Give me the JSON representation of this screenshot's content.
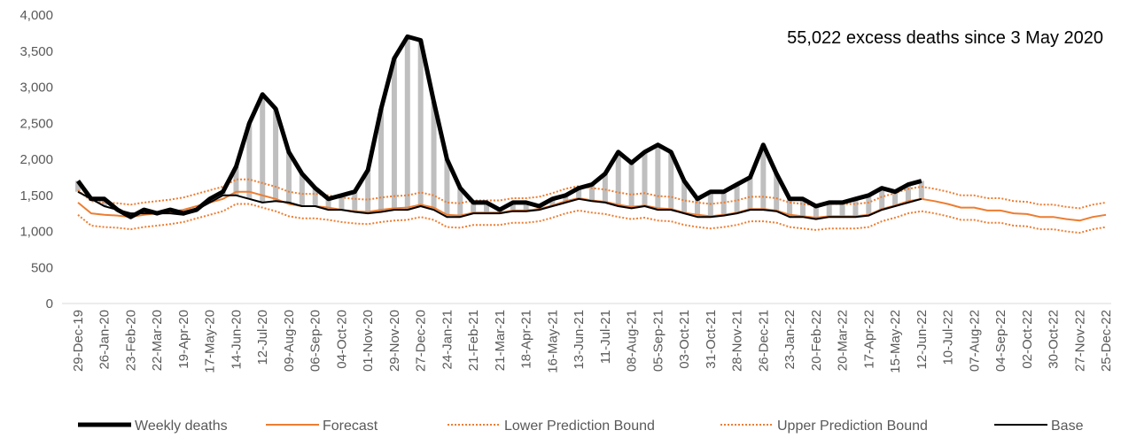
{
  "chart_data": {
    "type": "line",
    "annotation": "55,022 excess deaths since 3 May 2020",
    "categories": [
      "29-Dec-19",
      null,
      "26-Jan-20",
      null,
      "23-Feb-20",
      null,
      "22-Mar-20",
      null,
      "19-Apr-20",
      null,
      "17-May-20",
      null,
      "14-Jun-20",
      null,
      "12-Jul-20",
      null,
      "09-Aug-20",
      null,
      "06-Sep-20",
      null,
      "04-Oct-20",
      null,
      "01-Nov-20",
      null,
      "29-Nov-20",
      null,
      "27-Dec-20",
      null,
      "24-Jan-21",
      null,
      "21-Feb-21",
      null,
      "21-Mar-21",
      null,
      "18-Apr-21",
      null,
      "16-May-21",
      null,
      "13-Jun-21",
      null,
      "11-Jul-21",
      null,
      "08-Aug-21",
      null,
      "05-Sep-21",
      null,
      "03-Oct-21",
      null,
      "31-Oct-21",
      null,
      "28-Nov-21",
      null,
      "26-Dec-21",
      null,
      "23-Jan-22",
      null,
      "20-Feb-22",
      null,
      "20-Mar-22",
      null,
      "17-Apr-22",
      null,
      "15-May-22",
      null,
      "12-Jun-22",
      null,
      "10-Jul-22",
      null,
      "07-Aug-22",
      null,
      "04-Sep-22",
      null,
      "02-Oct-22",
      null,
      "30-Oct-22",
      null,
      "27-Nov-22",
      null,
      "25-Dec-22"
    ],
    "series": [
      {
        "name": "Weekly deaths",
        "color": "#000000",
        "style": "thick",
        "values": [
          1700,
          1450,
          1450,
          1300,
          1200,
          1300,
          1250,
          1300,
          1250,
          1300,
          1450,
          1550,
          1900,
          2500,
          2900,
          2700,
          2100,
          1800,
          1600,
          1450,
          1500,
          1550,
          1850,
          2700,
          3400,
          3700,
          3650,
          2800,
          2000,
          1600,
          1400,
          1400,
          1300,
          1400,
          1400,
          1350,
          1450,
          1500,
          1600,
          1650,
          1800,
          2100,
          1950,
          2100,
          2200,
          2100,
          1700,
          1450,
          1550,
          1550,
          1650,
          1750,
          2200,
          1800,
          1450,
          1450,
          1350,
          1400,
          1400,
          1450,
          1500,
          1600,
          1550,
          1650,
          1700,
          null,
          null,
          null,
          null,
          null,
          null,
          null,
          null,
          null,
          null,
          null,
          null,
          null,
          null
        ]
      },
      {
        "name": "Forecast",
        "color": "#ed7d31",
        "style": "solid",
        "values": [
          1400,
          1250,
          1230,
          1220,
          1200,
          1230,
          1250,
          1270,
          1300,
          1350,
          1400,
          1450,
          1550,
          1550,
          1500,
          1450,
          1380,
          1350,
          1350,
          1330,
          1300,
          1280,
          1270,
          1300,
          1320,
          1330,
          1370,
          1330,
          1230,
          1220,
          1260,
          1260,
          1260,
          1290,
          1290,
          1310,
          1360,
          1420,
          1460,
          1430,
          1410,
          1370,
          1340,
          1360,
          1320,
          1310,
          1260,
          1230,
          1210,
          1230,
          1260,
          1310,
          1310,
          1290,
          1230,
          1210,
          1190,
          1210,
          1210,
          1210,
          1230,
          1310,
          1360,
          1420,
          1450,
          1420,
          1380,
          1330,
          1330,
          1290,
          1290,
          1250,
          1240,
          1200,
          1200,
          1170,
          1150,
          1200,
          1230
        ]
      },
      {
        "name": "Lower Prediction Bound",
        "color": "#ed7d31",
        "style": "dotted",
        "values": [
          1230,
          1080,
          1060,
          1050,
          1030,
          1060,
          1080,
          1100,
          1130,
          1180,
          1230,
          1280,
          1380,
          1380,
          1330,
          1280,
          1210,
          1180,
          1180,
          1160,
          1130,
          1110,
          1100,
          1130,
          1150,
          1160,
          1200,
          1160,
          1060,
          1050,
          1090,
          1090,
          1090,
          1120,
          1120,
          1140,
          1190,
          1250,
          1290,
          1260,
          1240,
          1200,
          1170,
          1190,
          1150,
          1140,
          1090,
          1060,
          1040,
          1060,
          1090,
          1140,
          1140,
          1120,
          1060,
          1040,
          1020,
          1040,
          1040,
          1040,
          1060,
          1140,
          1190,
          1250,
          1280,
          1250,
          1210,
          1160,
          1160,
          1120,
          1120,
          1080,
          1070,
          1030,
          1030,
          1000,
          980,
          1030,
          1060
        ]
      },
      {
        "name": "Upper Prediction Bound",
        "color": "#ed7d31",
        "style": "dotted",
        "values": [
          1570,
          1420,
          1400,
          1390,
          1370,
          1400,
          1420,
          1440,
          1470,
          1520,
          1570,
          1620,
          1720,
          1720,
          1670,
          1620,
          1550,
          1520,
          1520,
          1500,
          1470,
          1450,
          1440,
          1470,
          1490,
          1500,
          1540,
          1500,
          1400,
          1390,
          1430,
          1430,
          1430,
          1460,
          1460,
          1480,
          1530,
          1590,
          1630,
          1600,
          1580,
          1540,
          1510,
          1530,
          1490,
          1480,
          1430,
          1400,
          1380,
          1400,
          1430,
          1480,
          1480,
          1460,
          1400,
          1380,
          1360,
          1380,
          1380,
          1380,
          1400,
          1480,
          1530,
          1590,
          1620,
          1590,
          1550,
          1500,
          1500,
          1460,
          1460,
          1420,
          1410,
          1370,
          1370,
          1340,
          1320,
          1370,
          1400
        ]
      },
      {
        "name": "Base",
        "color": "#000000",
        "style": "solid",
        "values": [
          1550,
          1450,
          1350,
          1300,
          1250,
          1250,
          1250,
          1250,
          1230,
          1300,
          1400,
          1500,
          1500,
          1450,
          1400,
          1420,
          1400,
          1350,
          1350,
          1300,
          1300,
          1270,
          1250,
          1270,
          1300,
          1300,
          1350,
          1300,
          1200,
          1200,
          1250,
          1250,
          1250,
          1280,
          1280,
          1300,
          1350,
          1400,
          1450,
          1420,
          1400,
          1350,
          1320,
          1350,
          1300,
          1300,
          1250,
          1200,
          1200,
          1220,
          1250,
          1300,
          1300,
          1280,
          1200,
          1200,
          1170,
          1200,
          1200,
          1200,
          1220,
          1300,
          1350,
          1400,
          1450,
          null,
          null,
          null,
          null,
          null,
          null,
          null,
          null,
          null,
          null,
          null,
          null,
          null,
          null
        ]
      }
    ],
    "excess_fill": "#bfbfbf",
    "ylim": [
      0,
      4000
    ],
    "yticks": [
      0,
      500,
      {
        "value": 1000,
        "label": "1,000"
      },
      {
        "value": 1500,
        "label": "1,500"
      },
      {
        "value": 2000,
        "label": "2,000"
      },
      {
        "value": 2500,
        "label": "2,500"
      },
      {
        "value": 3000,
        "label": "3,000"
      },
      {
        "value": 3500,
        "label": "3,500"
      },
      {
        "value": 4000,
        "label": "4,000"
      }
    ],
    "grid": false,
    "legend": "bottom"
  }
}
